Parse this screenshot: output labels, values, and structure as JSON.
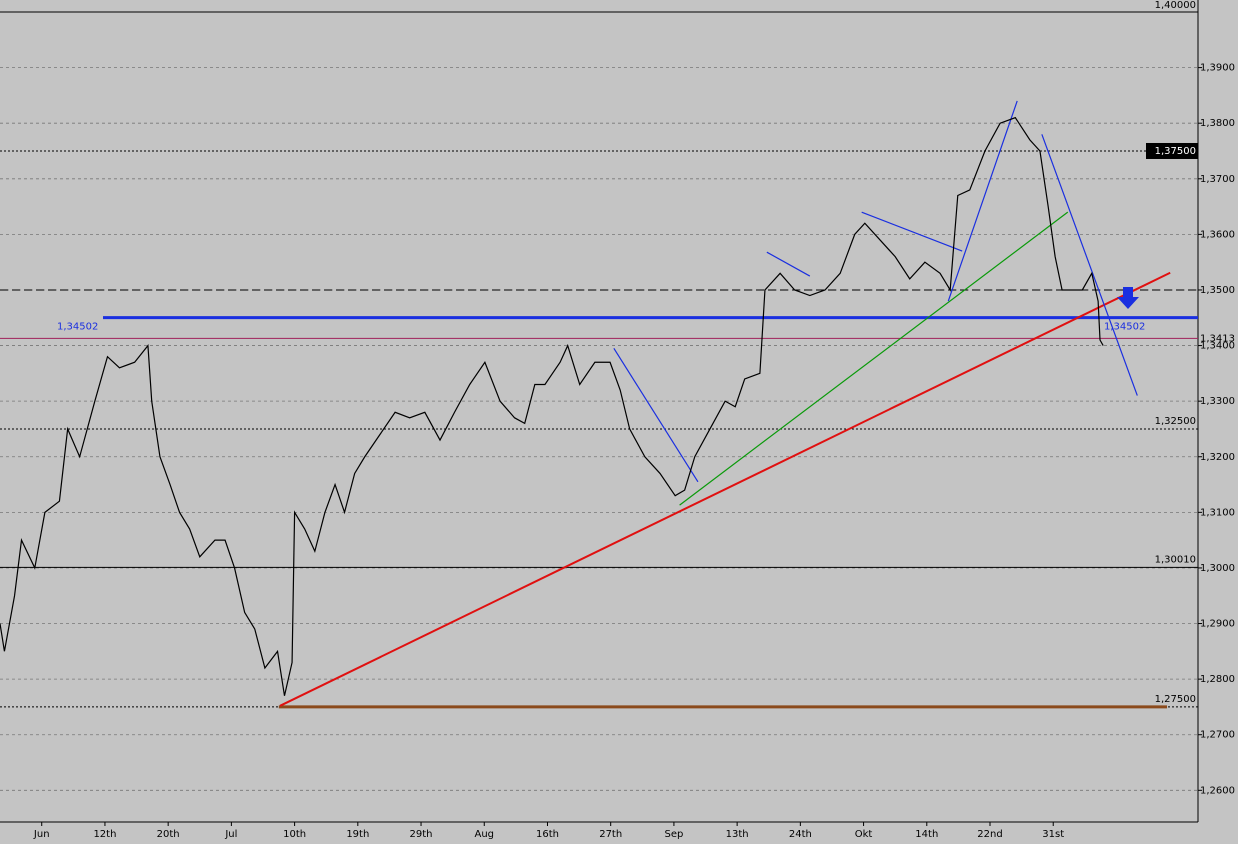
{
  "chart_data": {
    "type": "line",
    "x": [
      -6.6,
      -5.9,
      -4.3,
      -3.2,
      -1.1,
      0.5,
      2.8,
      4.1,
      6.0,
      8.4,
      10.4,
      12.3,
      14.7,
      16.8,
      17.4,
      18.7,
      20.3,
      21.8,
      23.4,
      25.0,
      27.4,
      29.0,
      30.5,
      32.1,
      33.7,
      35.3,
      37.3,
      38.4,
      39.6,
      40.0,
      41.6,
      43.2,
      44.8,
      46.4,
      47.9,
      49.5,
      51.1,
      53.5,
      55.9,
      58.2,
      60.6,
      63.0,
      65.3,
      67.7,
      70.1,
      72.5,
      74.8,
      76.4,
      78.0,
      79.6,
      82.0,
      83.2,
      85.1,
      87.5,
      89.9,
      91.5,
      93.0,
      95.4,
      97.8,
      100.2,
      101.7,
      103.3,
      105.7,
      108.1,
      109.7,
      111.2,
      113.6,
      114.4,
      116.8,
      119.1,
      121.5,
      123.9,
      126.3,
      128.6,
      130.2,
      132.6,
      135.0,
      137.3,
      139.7,
      142.1,
      143.7,
      144.9,
      146.8,
      149.2,
      151.6,
      154.0,
      156.3,
      157.9,
      159.2,
      160.3,
      161.4,
      163.0,
      164.6,
      166.1,
      167.1,
      167.4,
      167.9
    ],
    "series": [
      {
        "color": "#000000",
        "values": [
          1.29,
          1.285,
          1.295,
          1.305,
          1.3,
          1.31,
          1.312,
          1.325,
          1.32,
          1.33,
          1.338,
          1.336,
          1.337,
          1.34,
          1.33,
          1.32,
          1.315,
          1.31,
          1.307,
          1.302,
          1.305,
          1.305,
          1.3,
          1.292,
          1.289,
          1.282,
          1.285,
          1.277,
          1.283,
          1.31,
          1.307,
          1.303,
          1.31,
          1.315,
          1.31,
          1.317,
          1.32,
          1.324,
          1.328,
          1.327,
          1.328,
          1.323,
          1.328,
          1.333,
          1.337,
          1.33,
          1.327,
          1.326,
          1.333,
          1.333,
          1.337,
          1.34,
          1.333,
          1.337,
          1.337,
          1.332,
          1.325,
          1.32,
          1.317,
          1.313,
          1.314,
          1.32,
          1.325,
          1.33,
          1.329,
          1.334,
          1.335,
          1.35,
          1.353,
          1.35,
          1.349,
          1.35,
          1.353,
          1.36,
          1.362,
          1.359,
          1.356,
          1.352,
          1.355,
          1.353,
          1.35,
          1.367,
          1.368,
          1.375,
          1.38,
          1.381,
          1.377,
          1.375,
          1.365,
          1.356,
          1.35,
          1.35,
          1.35,
          1.353,
          1.348,
          1.341,
          1.34
        ]
      }
    ],
    "xlim": [
      -6.6,
      182.9
    ],
    "xticks": [
      {
        "value": 0,
        "label": "Jun"
      },
      {
        "value": 10,
        "label": "12th"
      },
      {
        "value": 20,
        "label": "20th"
      },
      {
        "value": 30,
        "label": "Jul"
      },
      {
        "value": 40,
        "label": "10th"
      },
      {
        "value": 50,
        "label": "19th"
      },
      {
        "value": 60,
        "label": "29th"
      },
      {
        "value": 70,
        "label": "Aug"
      },
      {
        "value": 80,
        "label": "16th"
      },
      {
        "value": 90,
        "label": "27th"
      },
      {
        "value": 100,
        "label": "Sep"
      },
      {
        "value": 110,
        "label": "13th"
      },
      {
        "value": 120,
        "label": "24th"
      },
      {
        "value": 130,
        "label": "Okt"
      },
      {
        "value": 140,
        "label": "14th"
      },
      {
        "value": 150,
        "label": "22nd"
      },
      {
        "value": 160,
        "label": "31st"
      }
    ],
    "ylim": [
      1.2543,
      1.40216
    ],
    "yticks": [
      {
        "value": 1.26,
        "label": "1,2600"
      },
      {
        "value": 1.27,
        "label": "1,2700"
      },
      {
        "value": 1.28,
        "label": "1,2800"
      },
      {
        "value": 1.29,
        "label": "1,2900"
      },
      {
        "value": 1.3,
        "label": "1,3000"
      },
      {
        "value": 1.31,
        "label": "1,3100"
      },
      {
        "value": 1.32,
        "label": "1,3200"
      },
      {
        "value": 1.33,
        "label": "1,3300"
      },
      {
        "value": 1.34,
        "label": "1,3400"
      },
      {
        "value": 1.35,
        "label": "1,3500"
      },
      {
        "value": 1.36,
        "label": "1,3600"
      },
      {
        "value": 1.37,
        "label": "1,3700"
      },
      {
        "value": 1.38,
        "label": "1,3800"
      },
      {
        "value": 1.39,
        "label": "1,3900"
      }
    ],
    "grid": true,
    "levels": [
      {
        "value": 1.4,
        "label": "1,40000",
        "color": "#000000",
        "style": "solid"
      },
      {
        "value": 1.375,
        "label": "1,37500",
        "color": "#000000",
        "style": "box-dotted"
      },
      {
        "value": 1.35,
        "color": "#000000",
        "style": "dashed"
      },
      {
        "value": 1.34502,
        "label": "1,34502",
        "color": "#1a2fe0",
        "style": "thick"
      },
      {
        "value": 1.3413,
        "label": "1,3413",
        "color": "#a0205a",
        "style": "solid"
      },
      {
        "value": 1.325,
        "label": "1,32500",
        "color": "#000000",
        "style": "dotted"
      },
      {
        "value": 1.3001,
        "label": "1,30010",
        "color": "#000000",
        "style": "solid"
      },
      {
        "value": 1.275,
        "label": "1,27500",
        "color": "#000000",
        "style": "dotted"
      }
    ],
    "trendlines": [
      {
        "color": "#8b4a1c",
        "x": [
          37.5,
          178.0
        ],
        "y": [
          1.275,
          1.275
        ]
      },
      {
        "color": "#e01010",
        "x": [
          37.7,
          178.5
        ],
        "y": [
          1.2752,
          1.3531
        ]
      },
      {
        "color": "#0a9a0a",
        "x": [
          100.9,
          162.3
        ],
        "y": [
          1.3113,
          1.364
        ]
      },
      {
        "color": "#1a2fe0",
        "x": [
          90.5,
          103.8
        ],
        "y": [
          1.3395,
          1.3155
        ]
      },
      {
        "color": "#1a2fe0",
        "x": [
          114.7,
          121.5
        ],
        "y": [
          1.3568,
          1.3525
        ]
      },
      {
        "color": "#1a2fe0",
        "x": [
          129.7,
          145.6
        ],
        "y": [
          1.364,
          1.357
        ]
      },
      {
        "color": "#1a2fe0",
        "x": [
          143.4,
          154.3
        ],
        "y": [
          1.348,
          1.384
        ]
      },
      {
        "color": "#1a2fe0",
        "x": [
          158.2,
          173.3
        ],
        "y": [
          1.378,
          1.331
        ]
      }
    ]
  }
}
